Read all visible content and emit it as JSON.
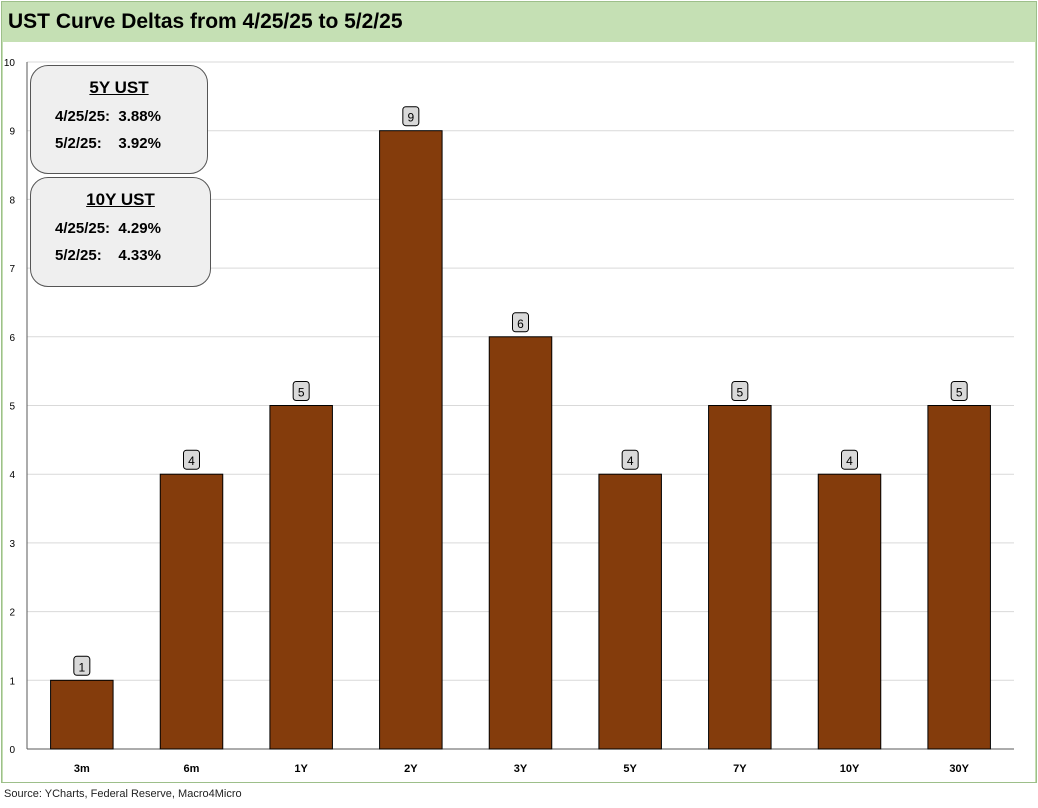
{
  "header": {
    "title": "UST Curve Deltas from 4/25/25 to 5/2/25"
  },
  "chart_data": {
    "type": "bar",
    "title": "UST Curve Deltas from 4/25/25 to 5/2/25",
    "categories": [
      "3m",
      "6m",
      "1Y",
      "2Y",
      "3Y",
      "5Y",
      "7Y",
      "10Y",
      "30Y"
    ],
    "values": [
      1,
      4,
      5,
      9,
      6,
      4,
      5,
      4,
      5
    ],
    "ylim": [
      0,
      10
    ],
    "yticks": [
      0,
      1,
      2,
      3,
      4,
      5,
      6,
      7,
      8,
      9,
      10
    ],
    "xlabel": "",
    "ylabel": "",
    "grid": true,
    "bar_color": "#843c0c"
  },
  "annotations": {
    "ust5": {
      "title": "5Y UST",
      "row1": "4/25/25:  3.88%",
      "row2": "5/2/25:    3.92%"
    },
    "ust10": {
      "title": "10Y UST",
      "row1": "4/25/25:  4.29%",
      "row2": "5/2/25:    4.33%"
    }
  },
  "footer": {
    "source": "Source: YCharts, Federal Reserve, Macro4Micro"
  },
  "colors": {
    "frame": "#c5e0b4",
    "bar": "#843c0c",
    "grid": "#d9d9d9"
  }
}
